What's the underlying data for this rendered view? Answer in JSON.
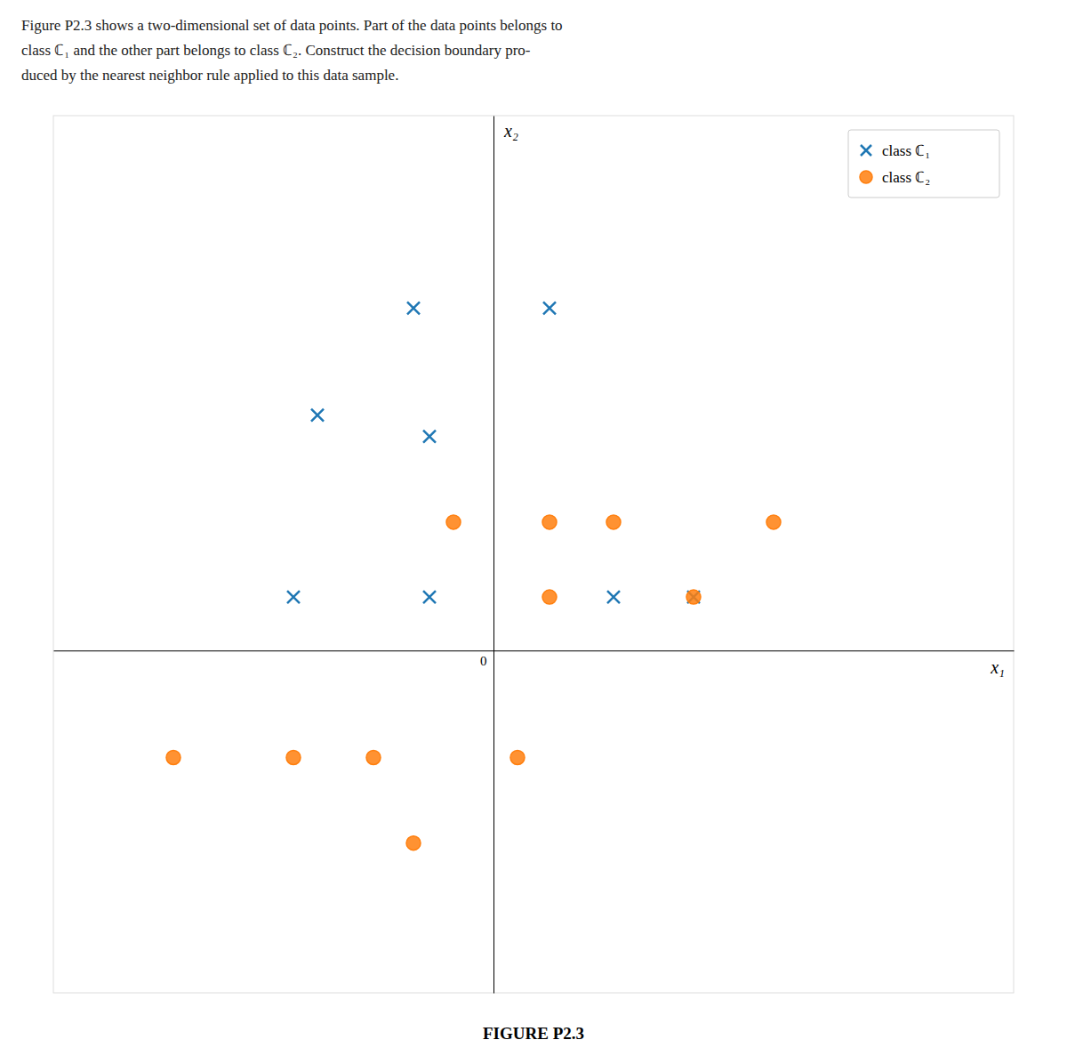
{
  "chart_data": {
    "type": "scatter",
    "title": "FIGURE P2.3",
    "annotations": [
      "Figure P2.3 shows a two-dimensional set of data points. Part of the data points belongs to",
      "class ℂ₁ and the other part belongs to class ℂ₂. Construct the decision boundary pro-",
      "duced by the nearest neighbor rule applied to this data sample."
    ],
    "xlabel": "x₁",
    "ylabel": "x₂",
    "xlim": [
      -5.5,
      6.5
    ],
    "ylim": [
      -3.2,
      5.0
    ],
    "xticks": [
      0
    ],
    "tick_labels": "x",
    "grid": false,
    "legend": "upper right",
    "series": [
      {
        "name": "class ℂ₁",
        "marker": "x",
        "x": [
          -1.0,
          0.7,
          -2.2,
          -0.8,
          -2.5,
          -0.8,
          1.5,
          2.5
        ],
        "values": [
          3.2,
          3.2,
          2.2,
          2.0,
          0.5,
          0.5,
          0.5,
          0.5
        ]
      },
      {
        "name": "class ℂ₂",
        "marker": "circle",
        "x": [
          -0.5,
          0.7,
          1.5,
          3.5,
          0.7,
          2.5,
          -4.0,
          -2.5,
          -1.5,
          -1.0,
          0.3
        ],
        "values": [
          1.2,
          1.2,
          1.2,
          1.2,
          0.5,
          0.5,
          -1.0,
          -1.0,
          -1.0,
          -1.8,
          -1.0
        ]
      }
    ]
  }
}
